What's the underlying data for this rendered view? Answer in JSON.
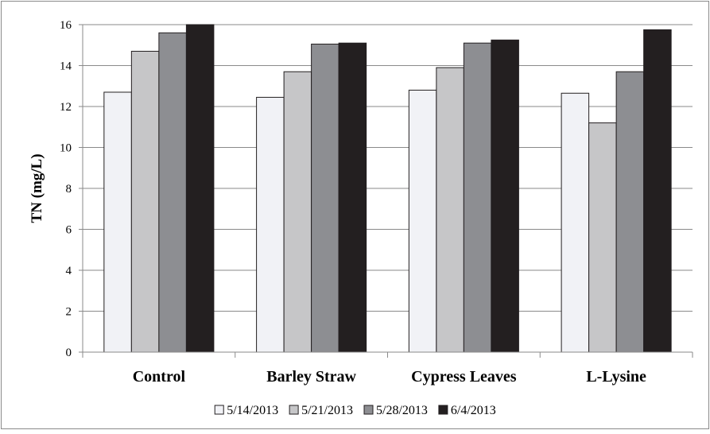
{
  "chart_data": {
    "type": "bar",
    "title": "",
    "xlabel": "",
    "ylabel": "TN (mg/L)",
    "ylim": [
      0,
      16
    ],
    "yticks": [
      0,
      2,
      4,
      6,
      8,
      10,
      12,
      14,
      16
    ],
    "grid": true,
    "legend_position": "bottom",
    "categories": [
      "Control",
      "Barley Straw",
      "Cypress Leaves",
      "L-Lysine"
    ],
    "series": [
      {
        "name": "5/14/2013",
        "color": "#f1f2f6",
        "values": [
          12.7,
          12.45,
          12.8,
          12.65
        ]
      },
      {
        "name": "5/21/2013",
        "color": "#c6c6c8",
        "values": [
          14.7,
          13.7,
          13.9,
          11.2
        ]
      },
      {
        "name": "5/28/2013",
        "color": "#8d8e92",
        "values": [
          15.6,
          15.05,
          15.1,
          13.7
        ]
      },
      {
        "name": "6/4/2013",
        "color": "#231f20",
        "values": [
          16.0,
          15.1,
          15.25,
          15.75
        ]
      }
    ]
  }
}
